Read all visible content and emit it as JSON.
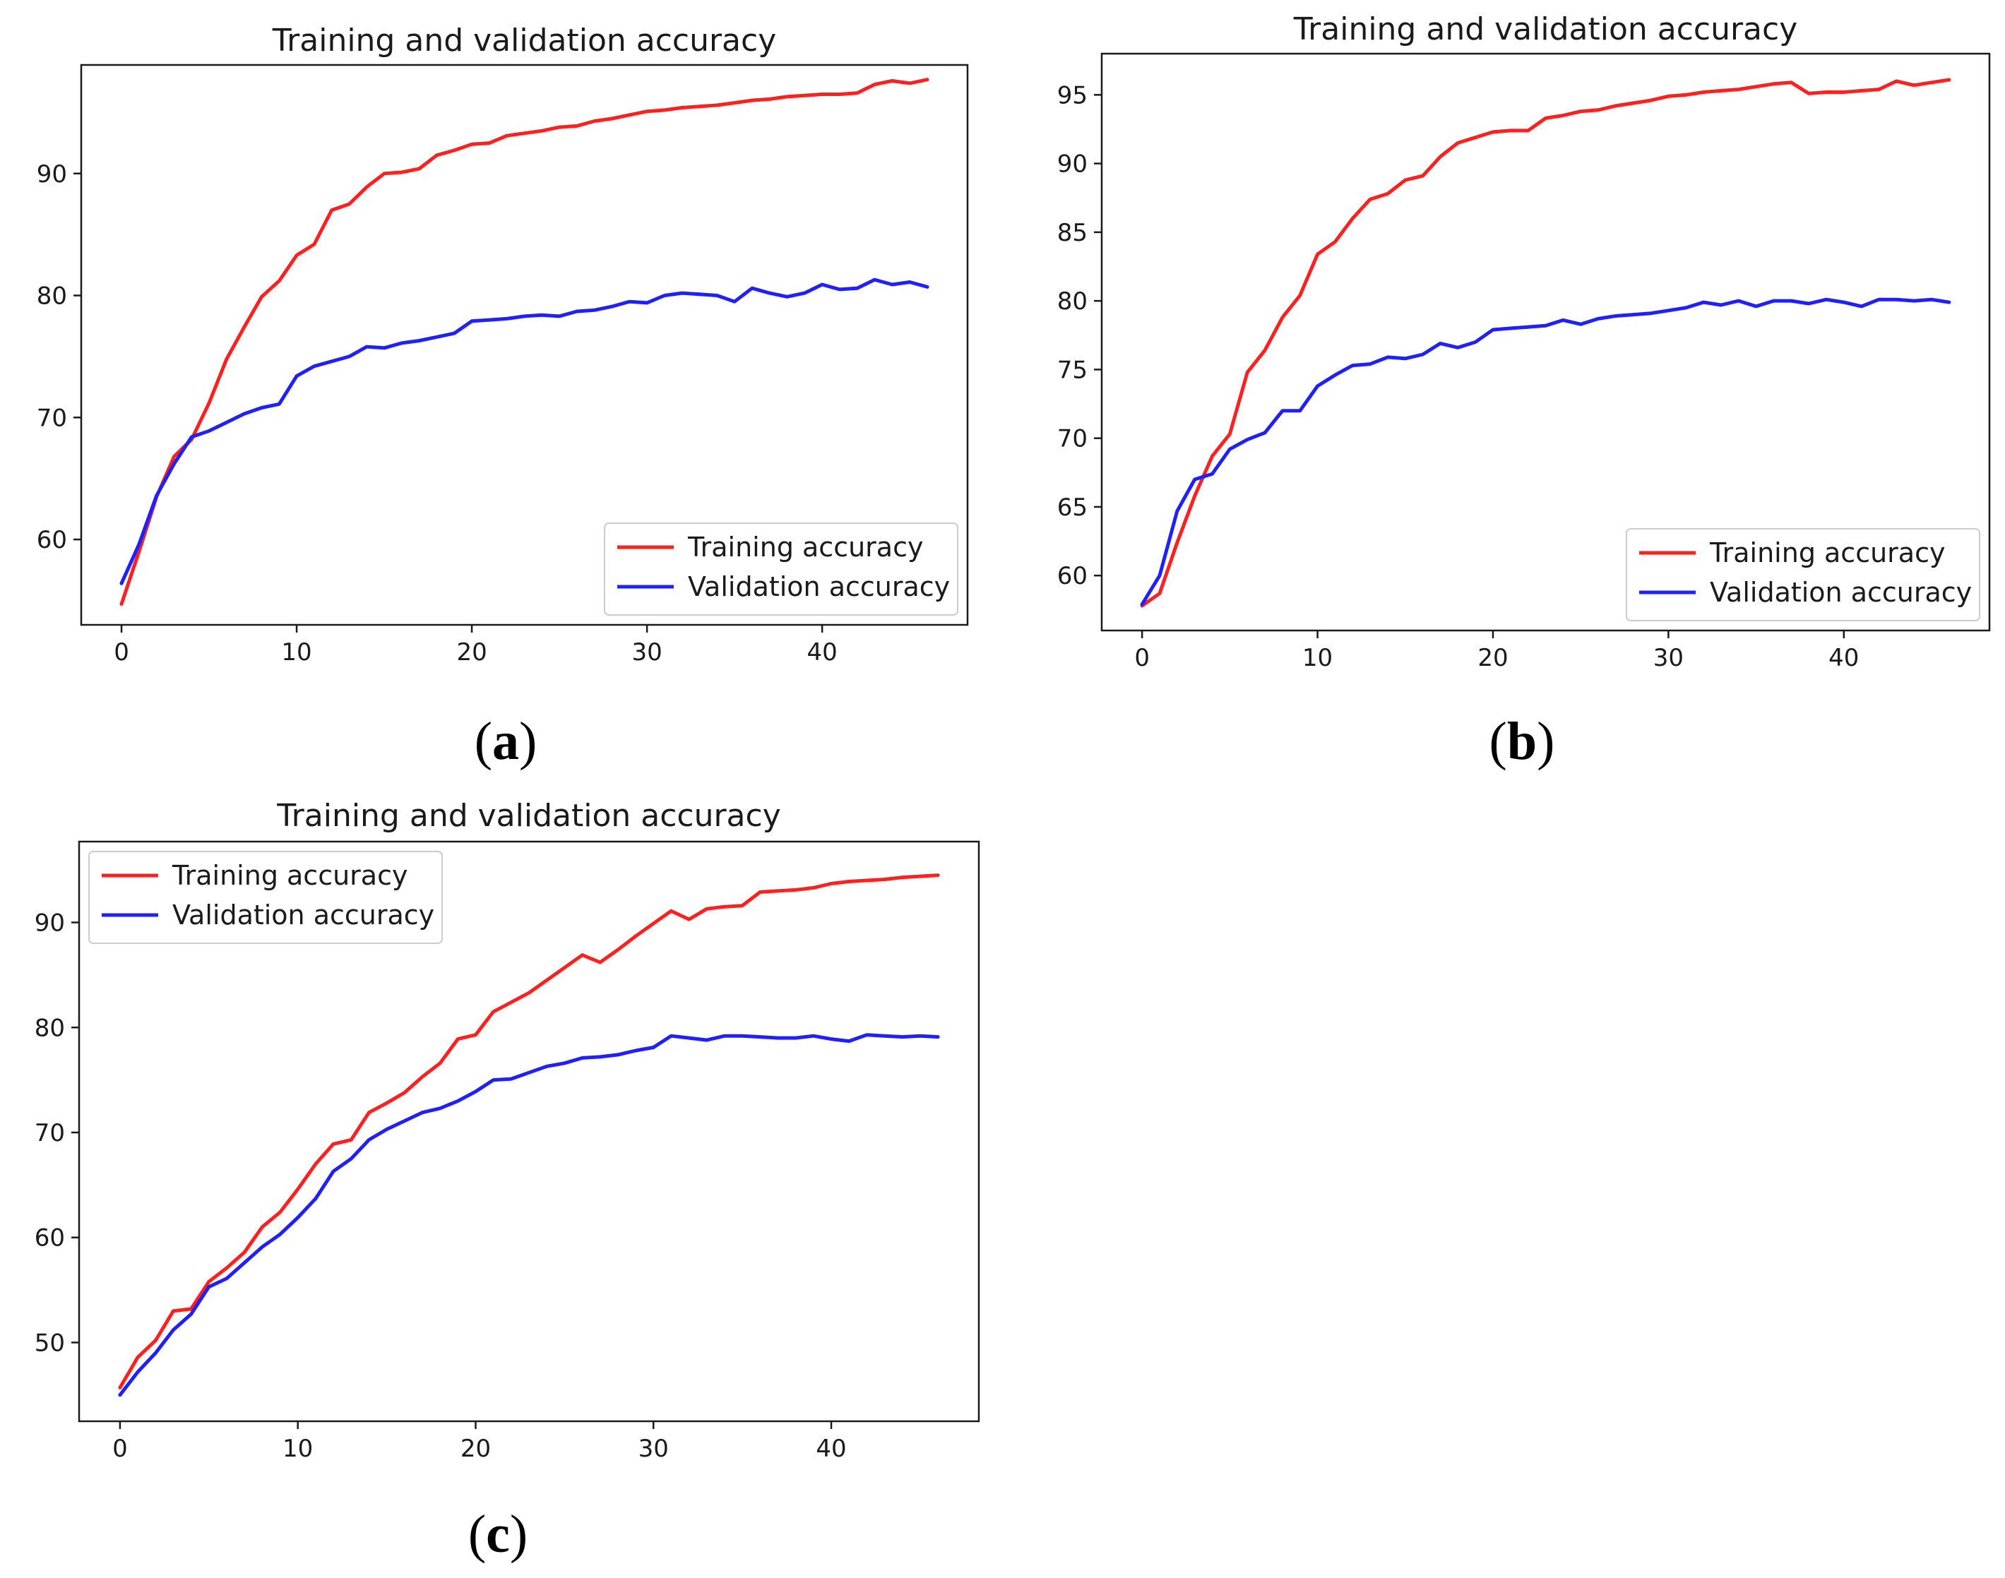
{
  "colors": {
    "training": "#ff2020",
    "validation": "#2020ff",
    "axis": "#1a1a1a"
  },
  "chart_data": [
    {
      "id": "a",
      "type": "line",
      "panel_label": "a",
      "title": "Training and validation accuracy",
      "xlabel": "",
      "ylabel": "",
      "xlim": [
        -2.3,
        48.3
      ],
      "ylim": [
        53.0,
        98.9
      ],
      "xticks": [
        0,
        10,
        20,
        30,
        40
      ],
      "yticks": [
        60,
        70,
        80,
        90
      ],
      "legend_position": "lower-right",
      "x": [
        0,
        1,
        2,
        3,
        4,
        5,
        6,
        7,
        8,
        9,
        10,
        11,
        12,
        13,
        14,
        15,
        16,
        17,
        18,
        19,
        20,
        21,
        22,
        23,
        24,
        25,
        26,
        27,
        28,
        29,
        30,
        31,
        32,
        33,
        34,
        35,
        36,
        37,
        38,
        39,
        40,
        41,
        42,
        43,
        44,
        45,
        46
      ],
      "series": [
        {
          "name": "Training accuracy",
          "color_key": "training",
          "values": [
            54.7,
            59.0,
            63.5,
            66.8,
            68.2,
            71.2,
            74.8,
            77.4,
            79.9,
            81.2,
            83.3,
            84.2,
            87.0,
            87.5,
            88.9,
            90.0,
            90.1,
            90.4,
            91.5,
            91.9,
            92.4,
            92.5,
            93.1,
            93.3,
            93.5,
            93.8,
            93.9,
            94.3,
            94.5,
            94.8,
            95.1,
            95.2,
            95.4,
            95.5,
            95.6,
            95.8,
            96.0,
            96.1,
            96.3,
            96.4,
            96.5,
            96.5,
            96.6,
            97.3,
            97.6,
            97.4,
            97.7
          ]
        },
        {
          "name": "Validation accuracy",
          "color_key": "validation",
          "values": [
            56.4,
            59.6,
            63.6,
            66.2,
            68.4,
            68.9,
            69.6,
            70.3,
            70.8,
            71.1,
            73.4,
            74.2,
            74.6,
            75.0,
            75.8,
            75.7,
            76.1,
            76.3,
            76.6,
            76.9,
            77.9,
            78.0,
            78.1,
            78.3,
            78.4,
            78.3,
            78.7,
            78.8,
            79.1,
            79.5,
            79.4,
            80.0,
            80.2,
            80.1,
            80.0,
            79.5,
            80.6,
            80.2,
            79.9,
            80.2,
            80.9,
            80.5,
            80.6,
            81.3,
            80.9,
            81.1,
            80.7
          ]
        }
      ]
    },
    {
      "id": "b",
      "type": "line",
      "panel_label": "b",
      "title": "Training and validation accuracy",
      "xlabel": "",
      "ylabel": "",
      "xlim": [
        -2.3,
        48.3
      ],
      "ylim": [
        56.0,
        98.0
      ],
      "xticks": [
        0,
        10,
        20,
        30,
        40
      ],
      "yticks": [
        60,
        65,
        70,
        75,
        80,
        85,
        90,
        95
      ],
      "legend_position": "lower-right",
      "x": [
        0,
        1,
        2,
        3,
        4,
        5,
        6,
        7,
        8,
        9,
        10,
        11,
        12,
        13,
        14,
        15,
        16,
        17,
        18,
        19,
        20,
        21,
        22,
        23,
        24,
        25,
        26,
        27,
        28,
        29,
        30,
        31,
        32,
        33,
        34,
        35,
        36,
        37,
        38,
        39,
        40,
        41,
        42,
        43,
        44,
        45,
        46
      ],
      "series": [
        {
          "name": "Training accuracy",
          "color_key": "training",
          "values": [
            57.8,
            58.7,
            62.4,
            65.8,
            68.7,
            70.3,
            74.8,
            76.4,
            78.8,
            80.4,
            83.4,
            84.3,
            86.0,
            87.4,
            87.8,
            88.8,
            89.1,
            90.5,
            91.5,
            91.9,
            92.3,
            92.4,
            92.4,
            93.3,
            93.5,
            93.8,
            93.9,
            94.2,
            94.4,
            94.6,
            94.9,
            95.0,
            95.2,
            95.3,
            95.4,
            95.6,
            95.8,
            95.9,
            95.1,
            95.2,
            95.2,
            95.3,
            95.4,
            96.0,
            95.7,
            95.9,
            96.1
          ]
        },
        {
          "name": "Validation accuracy",
          "color_key": "validation",
          "values": [
            57.9,
            60.0,
            64.7,
            67.0,
            67.4,
            69.2,
            69.9,
            70.4,
            72.0,
            72.0,
            73.8,
            74.6,
            75.3,
            75.4,
            75.9,
            75.8,
            76.1,
            76.9,
            76.6,
            77.0,
            77.9,
            78.0,
            78.1,
            78.2,
            78.6,
            78.3,
            78.7,
            78.9,
            79.0,
            79.1,
            79.3,
            79.5,
            79.9,
            79.7,
            80.0,
            79.6,
            80.0,
            80.0,
            79.8,
            80.1,
            79.9,
            79.6,
            80.1,
            80.1,
            80.0,
            80.1,
            79.9
          ]
        }
      ]
    },
    {
      "id": "c",
      "type": "line",
      "panel_label": "c",
      "title": "Training and validation accuracy",
      "xlabel": "",
      "ylabel": "",
      "xlim": [
        -2.3,
        48.3
      ],
      "ylim": [
        42.5,
        97.7
      ],
      "xticks": [
        0,
        10,
        20,
        30,
        40
      ],
      "yticks": [
        50,
        60,
        70,
        80,
        90
      ],
      "legend_position": "upper-left",
      "x": [
        0,
        1,
        2,
        3,
        4,
        5,
        6,
        7,
        8,
        9,
        10,
        11,
        12,
        13,
        14,
        15,
        16,
        17,
        18,
        19,
        20,
        21,
        22,
        23,
        24,
        25,
        26,
        27,
        28,
        29,
        30,
        31,
        32,
        33,
        34,
        35,
        36,
        37,
        38,
        39,
        40,
        41,
        42,
        43,
        44,
        45,
        46
      ],
      "series": [
        {
          "name": "Training accuracy",
          "color_key": "training",
          "values": [
            45.7,
            48.6,
            50.2,
            53.0,
            53.2,
            55.8,
            57.1,
            58.6,
            61.0,
            62.4,
            64.6,
            67.0,
            68.9,
            69.3,
            71.9,
            72.8,
            73.8,
            75.3,
            76.6,
            78.9,
            79.3,
            81.5,
            82.4,
            83.3,
            84.5,
            85.7,
            86.9,
            86.2,
            87.4,
            88.7,
            89.9,
            91.1,
            90.3,
            91.3,
            91.5,
            91.6,
            92.9,
            93.0,
            93.1,
            93.3,
            93.7,
            93.9,
            94.0,
            94.1,
            94.3,
            94.4,
            94.5
          ]
        },
        {
          "name": "Validation accuracy",
          "color_key": "validation",
          "values": [
            45.0,
            47.2,
            49.0,
            51.2,
            52.7,
            55.3,
            56.1,
            57.6,
            59.1,
            60.3,
            61.9,
            63.7,
            66.3,
            67.5,
            69.3,
            70.3,
            71.1,
            71.9,
            72.3,
            73.0,
            73.9,
            75.0,
            75.1,
            75.7,
            76.3,
            76.6,
            77.1,
            77.2,
            77.4,
            77.8,
            78.1,
            79.2,
            79.0,
            78.8,
            79.2,
            79.2,
            79.1,
            79.0,
            79.0,
            79.2,
            78.9,
            78.7,
            79.3,
            79.2,
            79.1,
            79.2,
            79.1
          ]
        }
      ]
    }
  ]
}
